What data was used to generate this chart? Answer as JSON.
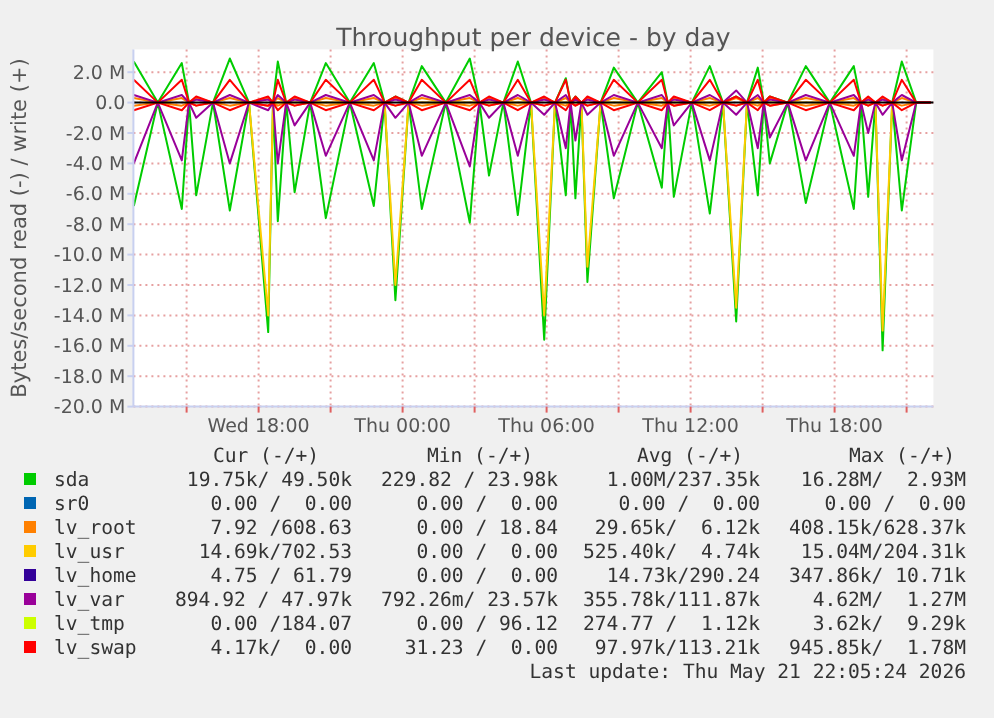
{
  "chart_data": {
    "type": "line",
    "title": "Throughput per device - by day",
    "ylabel": "Bytes/second read (-) / write (+)",
    "x": [
      "2026-05-20T12:48",
      "2026-05-20T13:48",
      "2026-05-20T14:48",
      "2026-05-20T15:06",
      "2026-05-20T15:24",
      "2026-05-20T16:06",
      "2026-05-20T16:48",
      "2026-05-20T17:36",
      "2026-05-20T18:24",
      "2026-05-20T18:36",
      "2026-05-20T18:48",
      "2026-05-20T19:09",
      "2026-05-20T19:30",
      "2026-05-20T20:09",
      "2026-05-20T20:48",
      "2026-05-20T21:48",
      "2026-05-20T22:48",
      "2026-05-20T23:15",
      "2026-05-20T23:42",
      "2026-05-21T00:15",
      "2026-05-21T00:48",
      "2026-05-21T01:48",
      "2026-05-21T02:48",
      "2026-05-21T03:12",
      "2026-05-21T03:36",
      "2026-05-21T04:12",
      "2026-05-21T04:48",
      "2026-05-21T05:21",
      "2026-05-21T05:54",
      "2026-05-21T06:21",
      "2026-05-21T06:48",
      "2026-05-21T07:00",
      "2026-05-21T07:12",
      "2026-05-21T07:27",
      "2026-05-21T07:42",
      "2026-05-21T08:15",
      "2026-05-21T08:48",
      "2026-05-21T09:48",
      "2026-05-21T10:48",
      "2026-05-21T11:03",
      "2026-05-21T11:18",
      "2026-05-21T12:03",
      "2026-05-21T12:48",
      "2026-05-21T13:21",
      "2026-05-21T13:54",
      "2026-05-21T14:21",
      "2026-05-21T14:48",
      "2026-05-21T15:03",
      "2026-05-21T15:18",
      "2026-05-21T16:03",
      "2026-05-21T16:48",
      "2026-05-21T17:48",
      "2026-05-21T18:48",
      "2026-05-21T19:06",
      "2026-05-21T19:24",
      "2026-05-21T19:42",
      "2026-05-21T20:00",
      "2026-05-21T20:24",
      "2026-05-21T20:48",
      "2026-05-21T21:24",
      "2026-05-21T22:00"
    ],
    "xlim": [
      "2026-05-20T12:47",
      "2026-05-21T22:07"
    ],
    "xticks": [
      {
        "value": "2026-05-20T15:00",
        "label": null
      },
      {
        "value": "2026-05-20T18:00",
        "label": "Wed 18:00"
      },
      {
        "value": "2026-05-20T21:00",
        "label": null
      },
      {
        "value": "2026-05-21T00:00",
        "label": "Thu 00:00"
      },
      {
        "value": "2026-05-21T03:00",
        "label": null
      },
      {
        "value": "2026-05-21T06:00",
        "label": "Thu 06:00"
      },
      {
        "value": "2026-05-21T09:00",
        "label": null
      },
      {
        "value": "2026-05-21T12:00",
        "label": "Thu 12:00"
      },
      {
        "value": "2026-05-21T15:00",
        "label": null
      },
      {
        "value": "2026-05-21T18:00",
        "label": "Thu 18:00"
      },
      {
        "value": "2026-05-21T21:00",
        "label": null
      }
    ],
    "ylim": [
      -20,
      3.5
    ],
    "yticks": [
      {
        "value": -20,
        "label": "-20.0 M"
      },
      {
        "value": -18,
        "label": "-18.0 M"
      },
      {
        "value": -16,
        "label": "-16.0 M"
      },
      {
        "value": -14,
        "label": "-14.0 M"
      },
      {
        "value": -12,
        "label": "-12.0 M"
      },
      {
        "value": -10,
        "label": "-10.0 M"
      },
      {
        "value": -8,
        "label": "-8.0 M"
      },
      {
        "value": -6,
        "label": "-6.0 M"
      },
      {
        "value": -4,
        "label": "-4.0 M"
      },
      {
        "value": -2,
        "label": "-2.0 M"
      },
      {
        "value": 0,
        "label": "0.0"
      },
      {
        "value": 2,
        "label": "2.0 M"
      }
    ],
    "grid": true,
    "legend": "bottom",
    "line_style": "solid",
    "ref_lines": [
      {
        "axis": "y",
        "value": 0,
        "color": "#000000"
      }
    ],
    "series": [
      {
        "name": "sda",
        "color": "#00cc00",
        "values": [
          2.7,
          0,
          2.6,
          0,
          0.3,
          0,
          2.9,
          0,
          0.3,
          0,
          2.7,
          0,
          0.3,
          0,
          2.6,
          0,
          2.6,
          0,
          0.4,
          0,
          2.4,
          0,
          2.9,
          0,
          0.3,
          0,
          2.7,
          0,
          0.3,
          0,
          1.6,
          0,
          0.4,
          0,
          0.3,
          0,
          2.3,
          0,
          2.0,
          0,
          0.3,
          0,
          2.4,
          0,
          0.4,
          0,
          2.3,
          0,
          0.4,
          0,
          2.4,
          0,
          2.4,
          0,
          0.3,
          0,
          0.3,
          0,
          2.7,
          0,
          0
        ]
      },
      {
        "color": "#00cc00",
        "values": [
          -6.8,
          0,
          -7.0,
          0,
          -6.1,
          0,
          -7.1,
          0,
          -15.1,
          0,
          -7.8,
          0,
          -5.9,
          0,
          -7.6,
          0,
          -6.8,
          0,
          -13.0,
          0,
          -7.0,
          0,
          -7.9,
          0,
          -4.8,
          0,
          -7.4,
          0,
          -15.6,
          0,
          -6.1,
          0,
          -6.3,
          0,
          -11.8,
          0,
          -6.3,
          0,
          -5.6,
          0,
          -6.2,
          0,
          -7.3,
          0,
          -14.4,
          0,
          -6.1,
          0,
          -4.0,
          0,
          -6.6,
          0,
          -7.0,
          0,
          -6.2,
          0,
          -16.3,
          0,
          -7.1,
          0,
          0
        ]
      },
      {
        "name": "sr0",
        "color": "#0066b3",
        "values": [
          null,
          null,
          null,
          null,
          null,
          null,
          null,
          null,
          null,
          null,
          null,
          null,
          null,
          null,
          null,
          null,
          null,
          null,
          null,
          null,
          null,
          null,
          null,
          null,
          null,
          null,
          null,
          null,
          null,
          null,
          null,
          null,
          null,
          null,
          null,
          null,
          null,
          null,
          null,
          null,
          null,
          null,
          null,
          null,
          null,
          null,
          null,
          null,
          null,
          null,
          null,
          null,
          null,
          null,
          null,
          null,
          null,
          null,
          null,
          null,
          null
        ]
      },
      {
        "name": "lv_root",
        "color": "#ff8000",
        "values": [
          0.3,
          0,
          0.3,
          0,
          0.3,
          0,
          0.3,
          0,
          0.3,
          0,
          0.3,
          0,
          0.3,
          0,
          0.3,
          0,
          0.3,
          0,
          0.3,
          0,
          0.3,
          0,
          0.3,
          0,
          0.3,
          0,
          0.3,
          0,
          0.3,
          0,
          0.3,
          0,
          0.3,
          0,
          0.3,
          0,
          0.3,
          0,
          0.3,
          0,
          0.3,
          0,
          0.3,
          0,
          0.3,
          0,
          0.3,
          0,
          0.3,
          0,
          0.3,
          0,
          0.3,
          0,
          0.3,
          0,
          0.3,
          0,
          0.3,
          0,
          0
        ]
      },
      {
        "color": "#ff8000",
        "values": [
          -0.2,
          0,
          -0.2,
          0,
          -0.2,
          0,
          -0.2,
          0,
          -0.2,
          0,
          -0.2,
          0,
          -0.2,
          0,
          -0.2,
          0,
          -0.2,
          0,
          -0.2,
          0,
          -0.2,
          0,
          -0.2,
          0,
          -0.2,
          0,
          -0.2,
          0,
          -0.2,
          0,
          -0.2,
          0,
          -0.2,
          0,
          -0.2,
          0,
          -0.2,
          0,
          -0.2,
          0,
          -0.2,
          0,
          -0.2,
          0,
          -0.2,
          0,
          -0.2,
          0,
          -0.2,
          0,
          -0.2,
          0,
          -0.2,
          0,
          -0.2,
          0,
          -0.2,
          0,
          -0.2,
          0,
          0
        ]
      },
      {
        "name": "lv_usr",
        "color": "#ffcc00",
        "x": [
          "2026-05-20T17:36",
          "2026-05-20T18:24",
          "2026-05-20T18:36",
          "2026-05-20T23:15",
          "2026-05-20T23:42",
          "2026-05-21T00:15",
          "2026-05-21T05:21",
          "2026-05-21T05:54",
          "2026-05-21T06:21",
          "2026-05-21T07:27",
          "2026-05-21T07:42",
          "2026-05-21T08:15",
          "2026-05-21T13:21",
          "2026-05-21T13:54",
          "2026-05-21T14:21",
          "2026-05-21T19:42",
          "2026-05-21T20:00",
          "2026-05-21T20:24"
        ],
        "values": [
          0,
          -14.0,
          0,
          0,
          -12.0,
          0,
          0,
          -14.0,
          0,
          0,
          -10.8,
          0,
          0,
          -13.5,
          0,
          0,
          -15.0,
          0
        ]
      },
      {
        "name": "lv_home",
        "color": "#330099",
        "values": [
          null,
          null,
          null,
          null,
          null,
          null,
          null,
          null,
          null,
          null,
          null,
          null,
          null,
          null,
          null,
          null,
          null,
          null,
          null,
          null,
          null,
          null,
          null,
          null,
          null,
          null,
          null,
          null,
          null,
          null,
          null,
          null,
          null,
          null,
          null,
          null,
          null,
          null,
          null,
          null,
          null,
          null,
          null,
          null,
          null,
          null,
          null,
          null,
          null,
          null,
          null,
          null,
          null,
          null,
          null,
          null,
          null,
          null,
          null,
          null,
          null
        ]
      },
      {
        "name": "lv_var",
        "color": "#990099",
        "values": [
          0.5,
          0,
          0.5,
          0,
          0.2,
          0,
          0.5,
          0,
          0.2,
          0,
          0.5,
          0,
          0.2,
          0,
          0.5,
          0,
          0.5,
          0,
          0.2,
          0,
          0.5,
          0,
          0.5,
          0,
          0.2,
          0,
          0.5,
          0,
          0.2,
          0,
          0.5,
          0,
          0.2,
          0,
          0.2,
          0,
          0.5,
          0,
          0.5,
          0,
          0.2,
          0,
          0.5,
          0,
          0.8,
          0,
          0.5,
          0,
          0.2,
          0,
          0.5,
          0,
          0.5,
          0,
          0.2,
          0,
          0.2,
          0,
          0.5,
          0,
          0
        ]
      },
      {
        "color": "#990099",
        "values": [
          -4.0,
          0,
          -3.8,
          0,
          -1.0,
          0,
          -4.0,
          0,
          -0.5,
          0,
          -4.0,
          0,
          -1.5,
          0,
          -3.5,
          0,
          -3.8,
          0,
          -1.0,
          0,
          -3.5,
          0,
          -4.2,
          0,
          -1.0,
          0,
          -3.5,
          0,
          -0.8,
          0,
          -3.0,
          0,
          -2.5,
          0,
          -0.8,
          0,
          -3.5,
          0,
          -3.0,
          0,
          -1.5,
          0,
          -3.8,
          0,
          -0.8,
          0,
          -3.0,
          0,
          -2.3,
          0,
          -3.8,
          0,
          -3.5,
          0,
          -2.0,
          0,
          -0.8,
          0,
          -3.8,
          0,
          0
        ]
      },
      {
        "name": "lv_tmp",
        "color": "#ccff00",
        "values": [
          null,
          null,
          null,
          null,
          null,
          null,
          null,
          null,
          null,
          null,
          null,
          null,
          null,
          null,
          null,
          null,
          null,
          null,
          null,
          null,
          null,
          null,
          null,
          null,
          null,
          null,
          null,
          null,
          null,
          null,
          null,
          null,
          null,
          null,
          null,
          null,
          null,
          null,
          null,
          null,
          null,
          null,
          null,
          null,
          null,
          null,
          null,
          null,
          null,
          null,
          null,
          null,
          null,
          null,
          null,
          null,
          null,
          null,
          null,
          null,
          null
        ]
      },
      {
        "name": "lv_swap",
        "color": "#ff0000",
        "values": [
          1.5,
          0,
          1.5,
          0,
          0.4,
          0,
          1.5,
          0,
          0.4,
          0,
          1.5,
          0,
          0.4,
          0,
          1.5,
          0,
          1.5,
          0,
          0.4,
          0,
          1.5,
          0,
          1.5,
          0,
          0.4,
          0,
          1.5,
          0,
          0.4,
          0,
          1.5,
          0,
          0.4,
          0,
          0.4,
          0,
          1.5,
          0,
          1.5,
          0,
          0.4,
          0,
          1.5,
          0,
          0.4,
          0,
          1.5,
          0,
          0.4,
          0,
          1.5,
          0,
          1.5,
          0,
          0.4,
          0,
          0.4,
          0,
          1.5,
          0,
          0
        ]
      },
      {
        "color": "#ff0000",
        "values": [
          -0.5,
          0,
          -0.5,
          0,
          -0.2,
          0,
          -0.5,
          0,
          -0.2,
          0,
          -0.5,
          0,
          -0.2,
          0,
          -0.5,
          0,
          -0.5,
          0,
          -0.2,
          0,
          -0.5,
          0,
          -0.5,
          0,
          -0.2,
          0,
          -0.5,
          0,
          -0.2,
          0,
          -0.5,
          0,
          -0.2,
          0,
          -0.2,
          0,
          -0.5,
          0,
          -0.5,
          0,
          -0.2,
          0,
          -0.5,
          0,
          -0.2,
          0,
          -0.5,
          0,
          -0.2,
          0,
          -0.5,
          0,
          -0.5,
          0,
          -0.2,
          0,
          -0.2,
          0,
          -0.5,
          0,
          0
        ]
      }
    ],
    "annotations": [
      "Cur (-/+)",
      "Min (-/+)",
      "Avg (-/+)",
      "Max (-/+)",
      "19.75k/ 49.50k",
      "229.82 / 23.98k",
      "1.00M/237.35k",
      "16.28M/  2.93M",
      "0.00 /  0.00",
      "0.00 /  0.00",
      "0.00 /  0.00",
      "0.00 /  0.00",
      "7.92 /608.63",
      "0.00 / 18.84",
      "29.65k/  6.12k",
      "408.15k/628.37k",
      "14.69k/702.53",
      "0.00 /  0.00",
      "525.40k/  4.74k",
      "15.04M/204.31k",
      "4.75 / 61.79",
      "0.00 /  0.00",
      "14.73k/290.24",
      "347.86k/ 10.71k",
      "894.92 / 47.97k",
      "792.26m/ 23.57k",
      "355.78k/111.87k",
      "4.62M/  1.27M",
      "0.00 /184.07",
      "0.00 / 96.12",
      "274.77 /  1.12k",
      "3.62k/  9.29k",
      "4.17k/  0.00",
      "31.23 /  0.00",
      "97.97k/113.21k",
      "945.85k/  1.78M",
      "Last update: Thu May 21 22:05:24 2026"
    ]
  }
}
